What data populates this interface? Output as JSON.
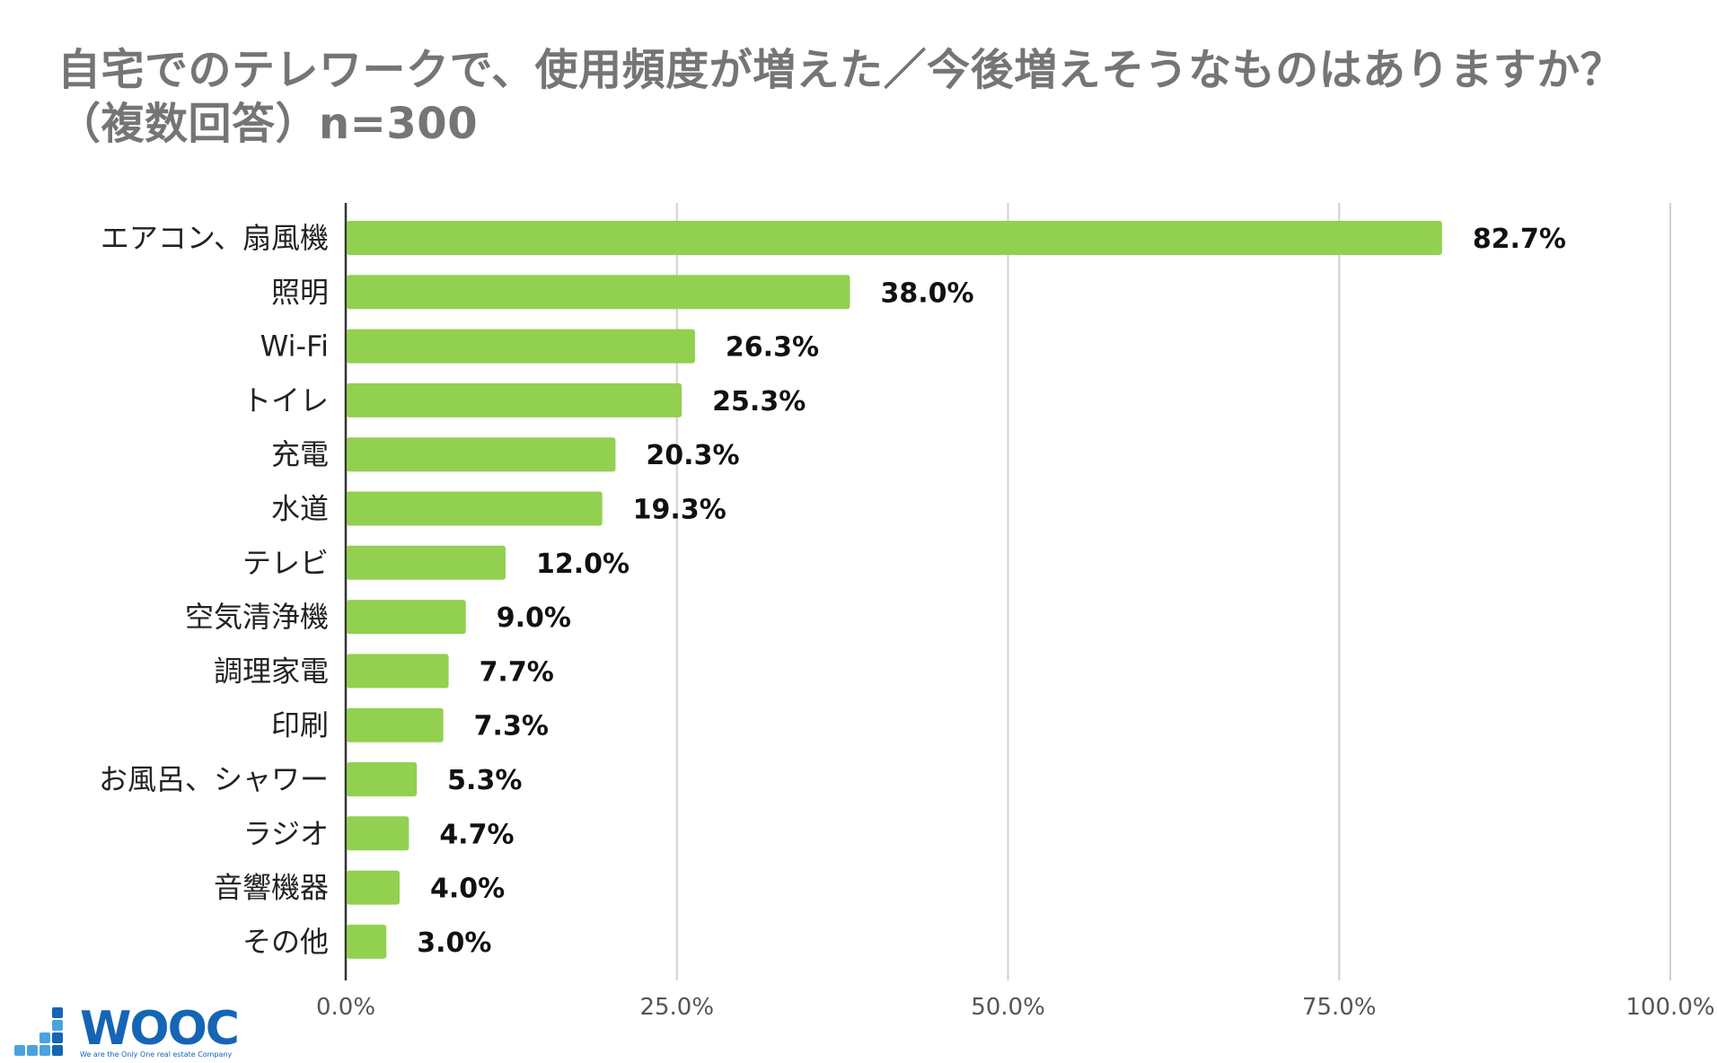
{
  "title_line1": "自宅でのテレワークで、使用頻度が増えた／今後増えそうなものはありますか？",
  "title_line2": "（複数回答）n=300",
  "chart_data": {
    "type": "bar",
    "orientation": "horizontal",
    "title": "自宅でのテレワークで、使用頻度が増えた／今後増えそうなものはありますか？（複数回答）n=300",
    "categories": [
      "エアコン、扇風機",
      "照明",
      "Wi-Fi",
      "トイレ",
      "充電",
      "水道",
      "テレビ",
      "空気清浄機",
      "調理家電",
      "印刷",
      "お風呂、シャワー",
      "ラジオ",
      "音響機器",
      "その他"
    ],
    "values": [
      82.7,
      38.0,
      26.3,
      25.3,
      20.3,
      19.3,
      12.0,
      9.0,
      7.7,
      7.3,
      5.3,
      4.7,
      4.0,
      3.0
    ],
    "value_labels": [
      "82.7%",
      "38.0%",
      "26.3%",
      "25.3%",
      "20.3%",
      "19.3%",
      "12.0%",
      "9.0%",
      "7.7%",
      "7.3%",
      "5.3%",
      "4.7%",
      "4.0%",
      "3.0%"
    ],
    "xlim": [
      0,
      100
    ],
    "xticks": [
      0,
      25,
      50,
      75,
      100
    ],
    "xtick_labels": [
      "0.0%",
      "25.0%",
      "50.0%",
      "75.0%",
      "100.0%"
    ],
    "grid": true,
    "legend": "none",
    "bar_color": "#92d050"
  },
  "logo": {
    "wordmark": "WOOC",
    "tagline": "We are the Only One real estate Company",
    "color": "#1565b5",
    "accent_color": "#4aa3df"
  }
}
